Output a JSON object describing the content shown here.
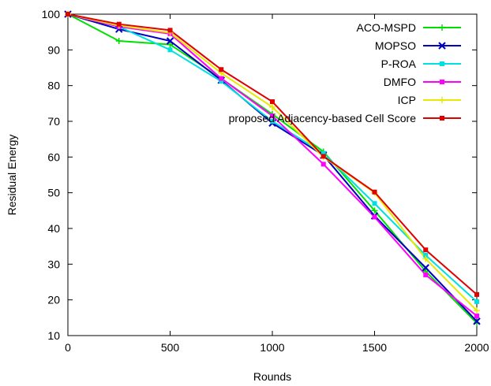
{
  "chart_data": {
    "type": "line",
    "xlabel": "Rounds",
    "ylabel": "Residual Energy",
    "xlim": [
      0,
      2000
    ],
    "ylim": [
      10,
      100
    ],
    "x_ticks": [
      "0",
      "500",
      "1000",
      "1500",
      "2000"
    ],
    "y_ticks": [
      "10",
      "20",
      "30",
      "40",
      "50",
      "60",
      "70",
      "80",
      "90",
      "100"
    ],
    "grid": false,
    "legend_position": "top-right",
    "x": [
      0,
      250,
      500,
      750,
      1000,
      1250,
      1500,
      1750,
      2000
    ],
    "series": [
      {
        "name": "ACO-MSPD",
        "color": "#00e000",
        "marker": "plus",
        "values": [
          100,
          92.5,
          91.5,
          82,
          72,
          61.5,
          45,
          28,
          13.5
        ]
      },
      {
        "name": "MOPSO",
        "color": "#0000c0",
        "marker": "cross",
        "values": [
          100,
          95.8,
          92.5,
          81.5,
          69.5,
          60.5,
          43.5,
          29,
          14
        ]
      },
      {
        "name": "P-ROA",
        "color": "#00e0e0",
        "marker": "square",
        "values": [
          100,
          96.5,
          90,
          81.2,
          70,
          61,
          47,
          32.5,
          19.5
        ]
      },
      {
        "name": "DMFO",
        "color": "#ff00ff",
        "marker": "square",
        "values": [
          100,
          96.5,
          94.5,
          82,
          71.5,
          58,
          43.2,
          27,
          15.5
        ]
      },
      {
        "name": "ICP",
        "color": "#e8e800",
        "marker": "plus",
        "values": [
          100,
          96.8,
          94.8,
          83.5,
          74,
          60,
          50,
          31.5,
          17
        ]
      },
      {
        "name": "proposed Adjacency-based Cell Score",
        "color": "#e00000",
        "marker": "square",
        "values": [
          100,
          97.2,
          95.5,
          84.5,
          75.5,
          60.2,
          50.2,
          34,
          21.5
        ]
      }
    ]
  }
}
